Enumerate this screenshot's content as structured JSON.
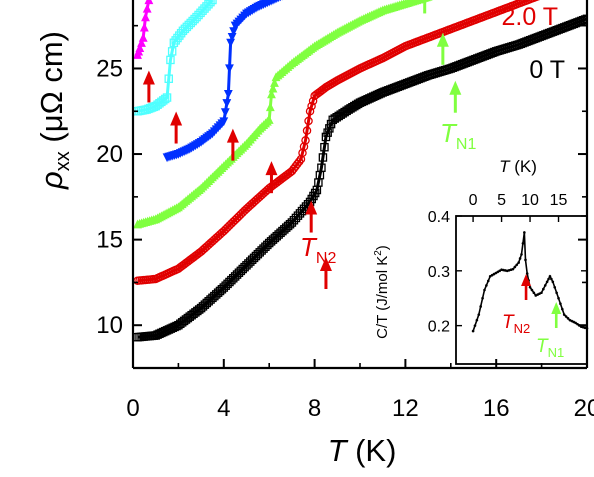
{
  "chart_data": [
    {
      "type": "line",
      "title": "",
      "xlabel_var": "T",
      "xlabel_unit": " (K)",
      "ylabel_var": "ρ",
      "ylabel_sub": "xx",
      "ylabel_unit": " (μΩ cm)",
      "xlim": [
        0,
        20
      ],
      "ylim": [
        7.5,
        29
      ],
      "xticks": [
        "0",
        "4",
        "8",
        "12",
        "16",
        "20"
      ],
      "yticks": [
        "10",
        "15",
        "20",
        "25"
      ],
      "series": [
        {
          "name": "0 T",
          "color": "#000000",
          "marker": "square",
          "x": [
            0.2,
            1,
            2,
            3,
            4,
            5,
            6,
            7,
            7.8,
            8.1,
            8.3,
            8.5,
            8.8,
            9.5,
            10,
            11,
            12,
            13,
            14,
            15,
            16,
            17,
            18,
            19,
            20
          ],
          "y": [
            9.3,
            9.4,
            10.0,
            11.0,
            12.2,
            13.5,
            14.8,
            16.0,
            17.2,
            17.9,
            19.2,
            21.0,
            22.0,
            22.6,
            23.0,
            23.6,
            24.1,
            24.6,
            25.0,
            25.5,
            26.0,
            26.4,
            26.9,
            27.4,
            27.9
          ]
        },
        {
          "name": "",
          "color": "#e00000",
          "marker": "circle",
          "x": [
            0.2,
            1,
            2,
            3,
            4,
            5,
            6,
            7,
            7.4,
            7.6,
            7.8,
            8.0,
            8.5,
            9,
            10,
            11,
            12,
            13,
            14,
            15,
            16,
            17,
            18,
            19
          ],
          "y": [
            12.6,
            12.7,
            13.3,
            14.3,
            15.5,
            16.8,
            18.0,
            19.0,
            19.7,
            20.8,
            22.5,
            23.4,
            23.9,
            24.3,
            25.0,
            25.6,
            26.3,
            26.8,
            27.3,
            27.8,
            28.3,
            28.8,
            29.3,
            29.8
          ]
        },
        {
          "name": "",
          "color": "#80ff40",
          "marker": "triangle",
          "x": [
            0.2,
            1,
            2,
            3,
            4,
            5,
            5.6,
            6.0,
            6.1,
            6.3,
            7,
            8,
            9,
            10,
            11,
            12,
            13
          ],
          "y": [
            15.9,
            16.2,
            16.9,
            18.0,
            19.3,
            20.6,
            21.5,
            22.0,
            23.5,
            24.5,
            25.3,
            26.3,
            27.1,
            27.8,
            28.4,
            28.8,
            29.2
          ]
        },
        {
          "name": "",
          "color": "#0030ff",
          "marker": "triangle-down",
          "x": [
            1.5,
            2,
            2.5,
            3,
            3.5,
            4,
            4.2,
            4.3,
            4.5,
            5,
            5.5,
            6,
            6.5,
            7
          ],
          "y": [
            19.8,
            20.0,
            20.3,
            20.7,
            21.2,
            21.9,
            23.5,
            26.5,
            27.5,
            28.2,
            28.6,
            28.9,
            29.2,
            29.5
          ]
        },
        {
          "name": "",
          "color": "#50ffff",
          "marker": "square",
          "x": [
            0.2,
            0.6,
            1,
            1.5,
            1.65,
            1.8,
            2.2,
            2.8,
            3.5
          ],
          "y": [
            22.5,
            22.6,
            22.8,
            23.3,
            25.5,
            26.5,
            27.2,
            28.0,
            29.0
          ]
        },
        {
          "name": "",
          "color": "#ff00ff",
          "marker": "triangle",
          "x": [
            0.2,
            0.3,
            0.45,
            0.55,
            0.7
          ],
          "y": [
            25.8,
            26.2,
            26.8,
            28.0,
            29.0
          ]
        }
      ],
      "annotations": [
        {
          "text": "2.0 T",
          "color": "#e00000"
        },
        {
          "text": "0 T",
          "color": "#000000"
        },
        {
          "var": "T",
          "sub": "N1",
          "color": "#80ff40"
        },
        {
          "var": "T",
          "sub": "N2",
          "color": "#e00000"
        }
      ],
      "arrows": [
        {
          "x": 0.7,
          "y": 24.3,
          "color": "#e00000"
        },
        {
          "x": 1.9,
          "y": 21.9,
          "color": "#e00000"
        },
        {
          "x": 4.4,
          "y": 20.9,
          "color": "#e00000"
        },
        {
          "x": 6.1,
          "y": 19.0,
          "color": "#e00000"
        },
        {
          "x": 7.85,
          "y": 16.7,
          "color": "#e00000"
        },
        {
          "x": 8.5,
          "y": 13.4,
          "color": "#e00000"
        },
        {
          "x": 13.65,
          "y": 26.5,
          "color": "#80ff40"
        },
        {
          "x": 14.2,
          "y": 23.7,
          "color": "#80ff40"
        },
        {
          "x": 12.85,
          "y": 29.5,
          "color": "#80ff40"
        }
      ]
    },
    {
      "type": "line",
      "title": "",
      "xlabel_var": "T",
      "xlabel_unit": " (K)",
      "ylabel": "C/T (J/mol K",
      "ylabel_sup": "2",
      "ylabel_close": ")",
      "xlim": [
        -3,
        20
      ],
      "ylim": [
        0.13,
        0.4
      ],
      "xticks": [
        "0",
        "5",
        "10",
        "15"
      ],
      "yticks": [
        "0.2",
        "0.3",
        "0.4"
      ],
      "series": [
        {
          "name": "",
          "color": "#000000",
          "x": [
            0,
            1,
            2,
            3,
            4,
            5,
            6,
            7,
            8,
            8.5,
            9,
            9.2,
            9.5,
            10,
            11,
            12,
            13,
            13.5,
            14,
            15,
            16,
            17,
            18,
            19,
            20
          ],
          "y": [
            0.19,
            0.22,
            0.265,
            0.29,
            0.296,
            0.302,
            0.3,
            0.303,
            0.315,
            0.33,
            0.37,
            0.32,
            0.295,
            0.27,
            0.255,
            0.26,
            0.28,
            0.29,
            0.28,
            0.25,
            0.22,
            0.21,
            0.205,
            0.198,
            0.195
          ]
        }
      ],
      "annotations": [
        {
          "var": "T",
          "sub": "N2",
          "color": "#e00000"
        },
        {
          "var": "T",
          "sub": "N1",
          "color": "#80ff40"
        }
      ],
      "arrows": [
        {
          "x": 9.3,
          "color": "#e00000"
        },
        {
          "x": 14.6,
          "color": "#80ff40"
        }
      ]
    }
  ]
}
